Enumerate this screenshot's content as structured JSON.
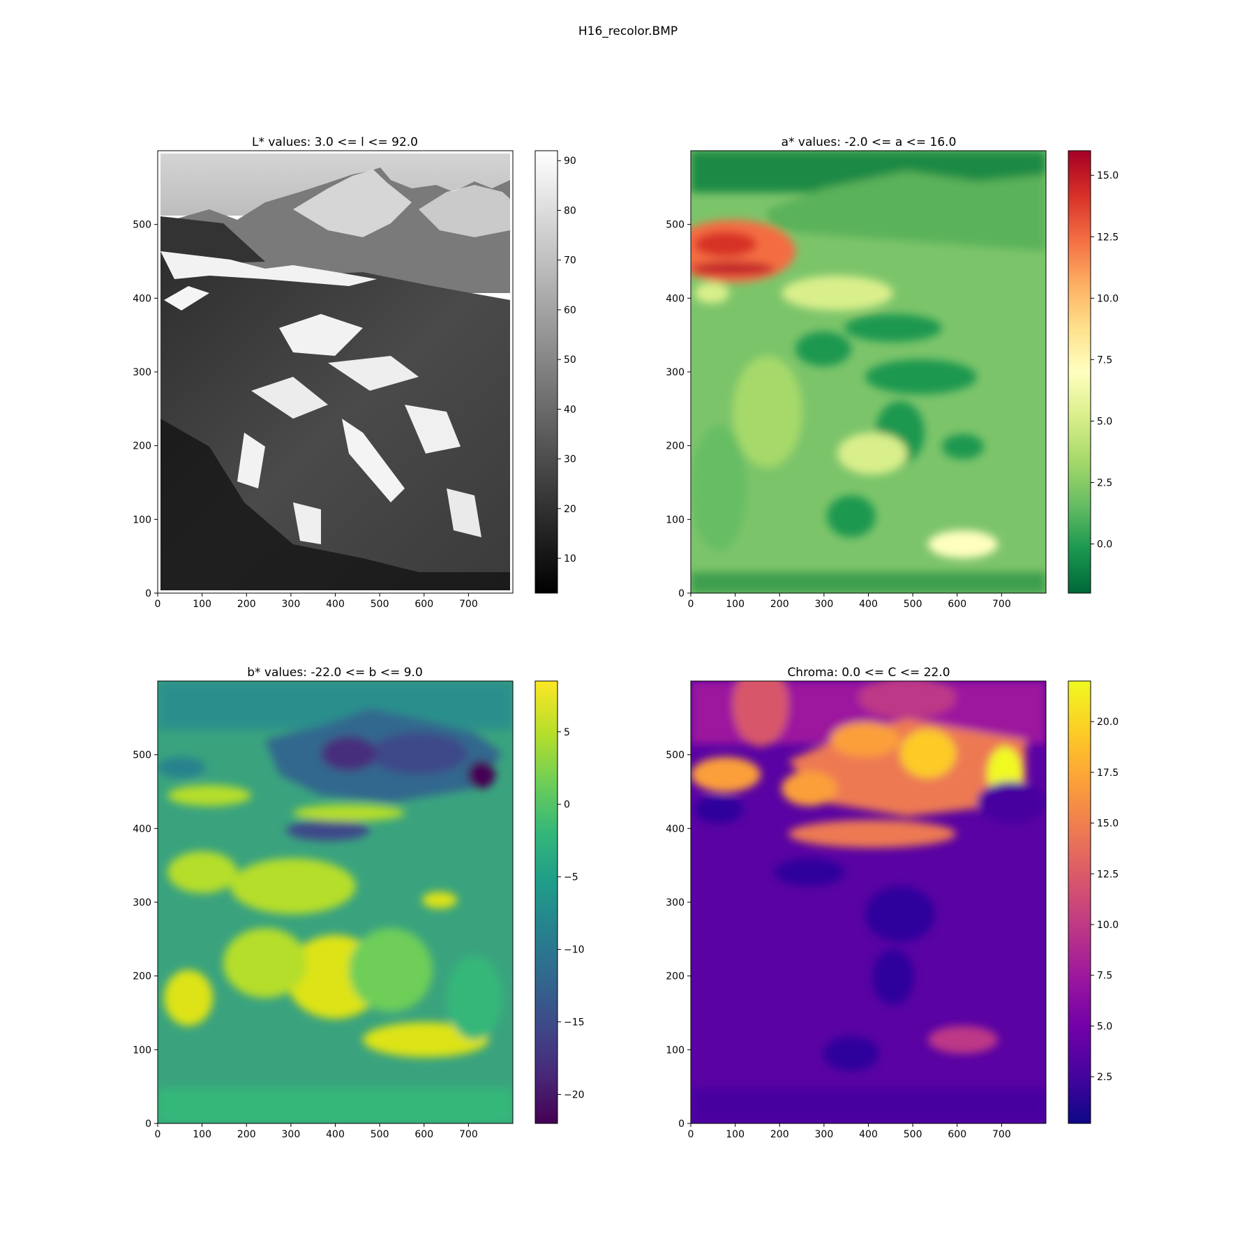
{
  "figure": {
    "title": "H16_recolor.BMP"
  },
  "chart_data": [
    {
      "type": "heatmap",
      "id": "lstar",
      "title": "L* values: 3.0 <= l <= 92.0",
      "colormap": "gray",
      "colormap_stops": [
        "#000000",
        "#ffffff"
      ],
      "xlim": [
        0,
        800
      ],
      "ylim": [
        0,
        600
      ],
      "xticks": [
        "0",
        "100",
        "200",
        "300",
        "400",
        "500",
        "600",
        "700"
      ],
      "yticks": [
        "0",
        "100",
        "200",
        "300",
        "400",
        "500"
      ],
      "clim": [
        3,
        92
      ],
      "cbar_ticks": [
        "10",
        "20",
        "30",
        "40",
        "50",
        "60",
        "70",
        "80",
        "90"
      ]
    },
    {
      "type": "heatmap",
      "id": "astar",
      "title": "a* values: -2.0 <= a <= 16.0",
      "colormap": "RdYlGn_r",
      "colormap_stops": [
        "#006837",
        "#1a9850",
        "#66bd63",
        "#a6d96a",
        "#d9ef8b",
        "#ffffbf",
        "#fee08b",
        "#fdae61",
        "#f46d43",
        "#d73027",
        "#a50026"
      ],
      "xlim": [
        0,
        800
      ],
      "ylim": [
        0,
        600
      ],
      "xticks": [
        "0",
        "100",
        "200",
        "300",
        "400",
        "500",
        "600",
        "700"
      ],
      "yticks": [
        "0",
        "100",
        "200",
        "300",
        "400",
        "500"
      ],
      "clim": [
        -2,
        16
      ],
      "cbar_ticks": [
        "0.0",
        "2.5",
        "5.0",
        "7.5",
        "10.0",
        "12.5",
        "15.0"
      ]
    },
    {
      "type": "heatmap",
      "id": "bstar",
      "title": "b* values: -22.0 <= b <= 9.0",
      "colormap": "viridis",
      "colormap_stops": [
        "#440154",
        "#482878",
        "#3e4989",
        "#31688e",
        "#26828e",
        "#1f9e89",
        "#35b779",
        "#6ece58",
        "#b5de2b",
        "#fde725"
      ],
      "xlim": [
        0,
        800
      ],
      "ylim": [
        0,
        600
      ],
      "xticks": [
        "0",
        "100",
        "200",
        "300",
        "400",
        "500",
        "600",
        "700"
      ],
      "yticks": [
        "0",
        "100",
        "200",
        "300",
        "400",
        "500"
      ],
      "clim": [
        -22,
        8.5
      ],
      "cbar_ticks": [
        "−20",
        "−15",
        "−10",
        "−5",
        "0",
        "5"
      ]
    },
    {
      "type": "heatmap",
      "id": "chroma",
      "title": "Chroma: 0.0 <= C <= 22.0",
      "colormap": "plasma",
      "colormap_stops": [
        "#0d0887",
        "#46039f",
        "#7201a8",
        "#9c179e",
        "#bd3786",
        "#d8576b",
        "#ed7953",
        "#fb9f3a",
        "#fdca26",
        "#f0f921"
      ],
      "xlim": [
        0,
        800
      ],
      "ylim": [
        0,
        600
      ],
      "xticks": [
        "0",
        "100",
        "200",
        "300",
        "400",
        "500",
        "600",
        "700"
      ],
      "yticks": [
        "0",
        "100",
        "200",
        "300",
        "400",
        "500"
      ],
      "clim": [
        0.2,
        22
      ],
      "cbar_ticks": [
        "2.5",
        "5.0",
        "7.5",
        "10.0",
        "12.5",
        "15.0",
        "17.5",
        "20.0"
      ]
    }
  ]
}
